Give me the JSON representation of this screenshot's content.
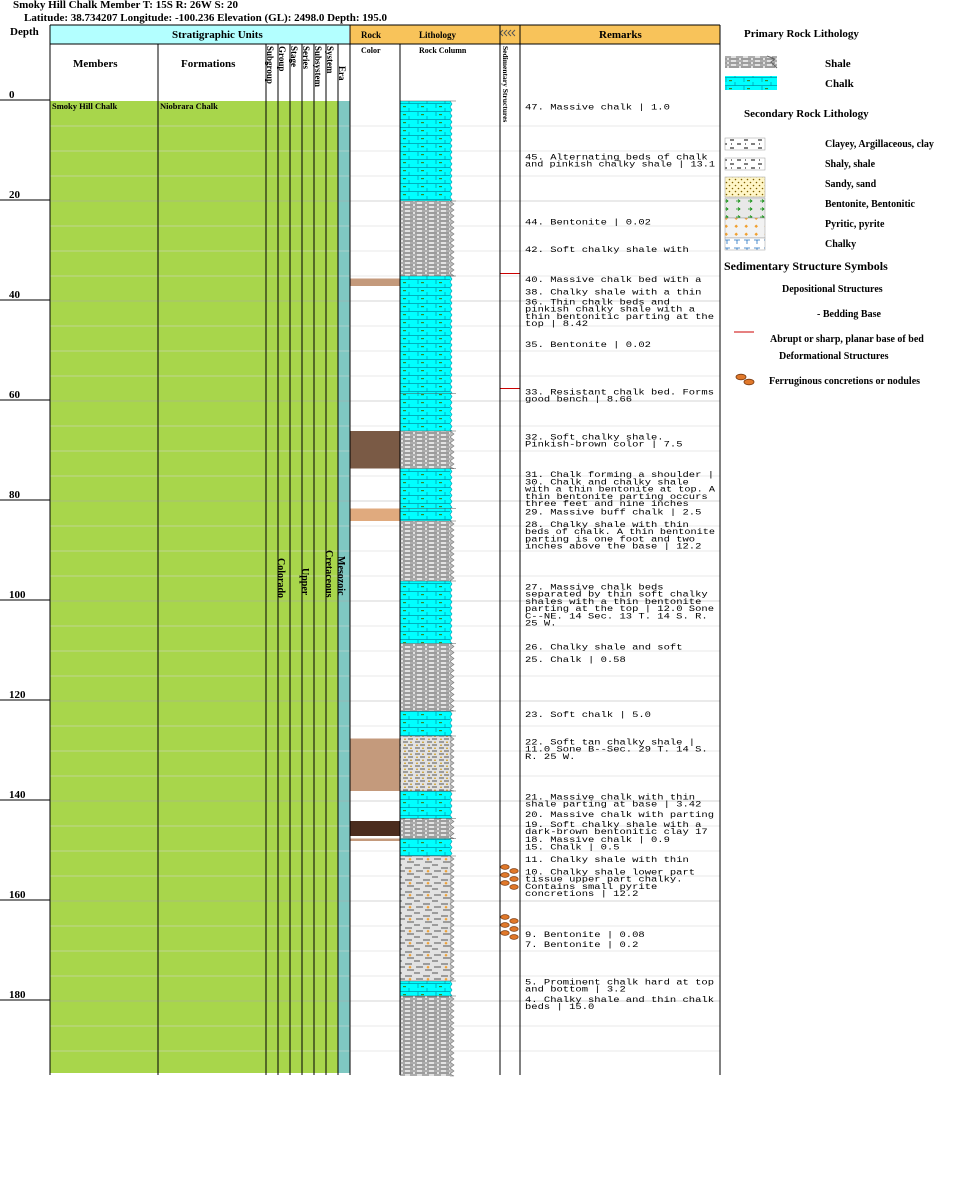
{
  "header": {
    "line1": "Smoky Hill Chalk Member T: 15S R: 26W S: 20",
    "line2": "Latitude: 38.734207 Longitude: -100.236 Elevation (GL): 2498.0 Depth: 195.0"
  },
  "columns": {
    "depth": "Depth",
    "strat_units": "Stratigraphic Units",
    "members": "Members",
    "formations": "Formations",
    "subgroup": "Subgroup",
    "group": "Group",
    "stage": "Stage",
    "series": "Series",
    "subsystem": "Subsystem",
    "system": "System",
    "era": "Era",
    "rock": "Rock",
    "color": "Color",
    "lithology": "Lithology",
    "rock_column": "Rock Column",
    "sed_structures": "Sedimentary Structures",
    "remarks": "Remarks"
  },
  "units": {
    "member": "Smoky Hill Chalk",
    "formation": "Niobrara Chalk",
    "group": "Colorado",
    "series": "Upper",
    "system": "Cretaceous",
    "era": "Mesozoic"
  },
  "colors": {
    "strat_header": "#b3ffff",
    "litho_header": "#f8c35a",
    "member_fill": "#a8d64b",
    "era_fill": "#7fc8c2",
    "chalk": "#00ffff",
    "shale": "#b8b8b8"
  },
  "depth_axis": {
    "min": 0,
    "max": 195,
    "ticks": [
      0,
      20,
      40,
      60,
      80,
      100,
      120,
      140,
      160,
      180
    ]
  },
  "lithology": [
    {
      "top": 0,
      "bottom": 20,
      "type": "chalk"
    },
    {
      "top": 20,
      "bottom": 35,
      "type": "shale"
    },
    {
      "top": 35,
      "bottom": 58.5,
      "type": "chalk"
    },
    {
      "top": 58.5,
      "bottom": 66,
      "type": "chalk"
    },
    {
      "top": 66,
      "bottom": 73.5,
      "type": "shale"
    },
    {
      "top": 73.5,
      "bottom": 81.5,
      "type": "chalk"
    },
    {
      "top": 81.5,
      "bottom": 84,
      "type": "chalk"
    },
    {
      "top": 84,
      "bottom": 96,
      "type": "shale"
    },
    {
      "top": 96,
      "bottom": 108.5,
      "type": "chalk"
    },
    {
      "top": 108.5,
      "bottom": 122,
      "type": "shale"
    },
    {
      "top": 122,
      "bottom": 127,
      "type": "chalk"
    },
    {
      "top": 127,
      "bottom": 138,
      "type": "shale-sandy"
    },
    {
      "top": 138,
      "bottom": 143.5,
      "type": "chalk"
    },
    {
      "top": 143.5,
      "bottom": 147.5,
      "type": "shale"
    },
    {
      "top": 147.5,
      "bottom": 151,
      "type": "chalk"
    },
    {
      "top": 151,
      "bottom": 176,
      "type": "shale-pyrite"
    },
    {
      "top": 176,
      "bottom": 179,
      "type": "chalk"
    },
    {
      "top": 179,
      "bottom": 195,
      "type": "shale"
    }
  ],
  "rock_colors": [
    {
      "top": 35.5,
      "bottom": 37,
      "color": "#c49a7c"
    },
    {
      "top": 66,
      "bottom": 73.5,
      "color": "#7a5a45"
    },
    {
      "top": 81.5,
      "bottom": 84,
      "color": "#e0aa7e"
    },
    {
      "top": 127.5,
      "bottom": 138,
      "color": "#c49a7c"
    },
    {
      "top": 144,
      "bottom": 147,
      "color": "#4b2c1e"
    },
    {
      "top": 147.5,
      "bottom": 148,
      "color": "#c49a7c"
    }
  ],
  "structures": [
    {
      "depth": 34.5,
      "type": "abrupt-base"
    },
    {
      "depth": 57.5,
      "type": "abrupt-base"
    },
    {
      "depth": 154,
      "type": "nodules"
    },
    {
      "depth": 164,
      "type": "nodules"
    }
  ],
  "remarks": [
    {
      "depth": 0.5,
      "lines": [
        "47. Massive chalk | 1.0"
      ]
    },
    {
      "depth": 10.5,
      "lines": [
        "45. Alternating beds of chalk",
        "and pinkish chalky shale | 13.1"
      ]
    },
    {
      "depth": 23.5,
      "lines": [
        "44. Bentonite | 0.02"
      ]
    },
    {
      "depth": 29,
      "lines": [
        "42. Soft chalky shale with"
      ]
    },
    {
      "depth": 35,
      "lines": [
        "40. Massive chalk bed with a"
      ]
    },
    {
      "depth": 37.5,
      "lines": [
        "38. Chalky shale with a thin"
      ]
    },
    {
      "depth": 39.5,
      "lines": [
        "36. Thin chalk beds and",
        "pinkish chalky shale with a",
        "thin bentonitic parting at the",
        "top | 8.42"
      ]
    },
    {
      "depth": 48,
      "lines": [
        "35. Bentonite | 0.02"
      ]
    },
    {
      "depth": 57.5,
      "lines": [
        "33. Resistant chalk bed. Forms",
        "good bench | 8.66"
      ]
    },
    {
      "depth": 66.5,
      "lines": [
        "32. Soft chalky shale.",
        "Pinkish-brown color | 7.5"
      ]
    },
    {
      "depth": 74,
      "lines": [
        "31. Chalk forming a shoulder |"
      ]
    },
    {
      "depth": 75.5,
      "lines": [
        "30. Chalk and chalky shale",
        "with a thin bentonite at top. A",
        "thin bentonite parting occurs",
        "three feet and nine inches"
      ]
    },
    {
      "depth": 81.5,
      "lines": [
        "29. Massive buff chalk | 2.5"
      ]
    },
    {
      "depth": 84,
      "lines": [
        "28. Chalky shale with thin",
        "beds of chalk. A thin bentonite",
        "parting is one foot and two",
        "inches above the base | 12.2"
      ]
    },
    {
      "depth": 96.5,
      "lines": [
        "27. Massive chalk beds",
        "separated by thin soft chalky",
        "shales with a thin bentonite",
        "parting at the top | 12.0 Sone",
        "C--NE. 14 Sec. 13 T. 14 S. R.",
        "25 W."
      ]
    },
    {
      "depth": 108.5,
      "lines": [
        "26. Chalky shale and soft"
      ]
    },
    {
      "depth": 111,
      "lines": [
        "25. Chalk | 0.58"
      ]
    },
    {
      "depth": 122,
      "lines": [
        "23. Soft chalk | 5.0"
      ]
    },
    {
      "depth": 127.5,
      "lines": [
        "22. Soft tan chalky shale |",
        "11.0 Sone B--Sec. 29 T. 14 S.",
        "R. 25 W."
      ]
    },
    {
      "depth": 138.5,
      "lines": [
        "21. Massive chalk with thin",
        "shale parting at base | 3.42"
      ]
    },
    {
      "depth": 142,
      "lines": [
        "20. Massive chalk with parting"
      ]
    },
    {
      "depth": 144,
      "lines": [
        "19. Soft chalky shale with a",
        "dark-brown bentonitic clay 17"
      ]
    },
    {
      "depth": 147,
      "lines": [
        "18. Massive chalk | 0.9"
      ]
    },
    {
      "depth": 148.5,
      "lines": [
        "15. Chalk | 0.5"
      ]
    },
    {
      "depth": 151,
      "lines": [
        "11. Chalky shale with thin"
      ]
    },
    {
      "depth": 153.5,
      "lines": [
        "10. Chalky shale lower part",
        "tissue upper part chalky.",
        "Contains small pyrite",
        "concretions | 12.2"
      ]
    },
    {
      "depth": 166,
      "lines": [
        "9. Bentonite | 0.08"
      ]
    },
    {
      "depth": 168,
      "lines": [
        "7. Bentonite | 0.2"
      ]
    },
    {
      "depth": 175.5,
      "lines": [
        "5. Prominent chalk hard at top",
        "and bottom | 3.2"
      ]
    },
    {
      "depth": 179,
      "lines": [
        "4. Chalky shale and thin chalk",
        "beds | 15.0"
      ]
    }
  ],
  "legend": {
    "primary_title": "Primary Rock Lithology",
    "primary": [
      {
        "name": "Shale",
        "swatch": "shale"
      },
      {
        "name": "Chalk",
        "swatch": "chalk"
      }
    ],
    "secondary_title": "Secondary Rock Lithology",
    "secondary": [
      {
        "name": "Clayey, Argillaceous, clay",
        "swatch": "clayey"
      },
      {
        "name": "Shaly, shale",
        "swatch": "shaly"
      },
      {
        "name": "Sandy, sand",
        "swatch": "sandy"
      },
      {
        "name": "Bentonite, Bentonitic",
        "swatch": "bentonite"
      },
      {
        "name": "Pyritic, pyrite",
        "swatch": "pyritic"
      },
      {
        "name": "Chalky",
        "swatch": "chalky"
      }
    ],
    "sed_title": "Sedimentary Structure Symbols",
    "depositional_title": "Depositional Structures",
    "bedding_base": "- Bedding Base",
    "abrupt_base": "Abrupt or sharp, planar base of bed",
    "deformational_title": "Deformational Structures",
    "nodules": "Ferruginous concretions or nodules"
  }
}
